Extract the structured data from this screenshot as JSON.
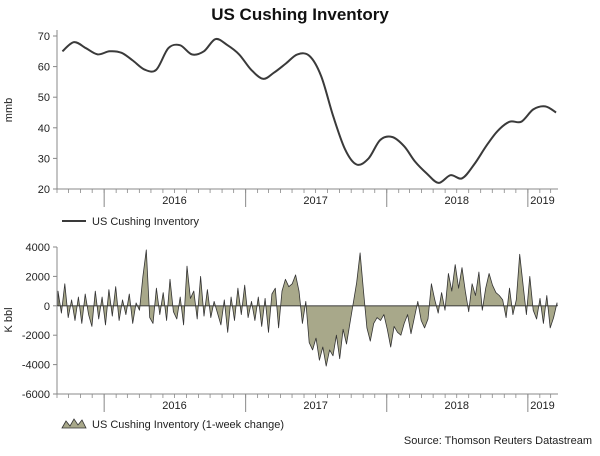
{
  "page": {
    "title": "US Cushing Inventory",
    "source": "Source: Thomson Reuters Datastream"
  },
  "chart_data": [
    {
      "type": "line",
      "ylabel": "mmb",
      "ylim": [
        20,
        70
      ],
      "yticks": [
        20,
        30,
        40,
        50,
        60,
        70
      ],
      "year_labels": [
        "2016",
        "2017",
        "2018",
        "2019"
      ],
      "legend": "US Cushing Inventory",
      "colors": {
        "line": "#3a3a3a"
      },
      "grid": false,
      "x_dates": [
        "2015-09",
        "2015-10",
        "2015-11",
        "2015-12",
        "2016-01",
        "2016-02",
        "2016-03",
        "2016-04",
        "2016-05",
        "2016-06",
        "2016-07",
        "2016-08",
        "2016-09",
        "2016-10",
        "2016-11",
        "2016-12",
        "2017-01",
        "2017-02",
        "2017-03",
        "2017-04",
        "2017-05",
        "2017-06",
        "2017-07",
        "2017-08",
        "2017-09",
        "2017-10",
        "2017-11",
        "2017-12",
        "2018-01",
        "2018-02",
        "2018-03",
        "2018-04",
        "2018-05",
        "2018-06",
        "2018-07",
        "2018-08",
        "2018-09",
        "2018-10",
        "2018-11",
        "2018-12",
        "2019-01",
        "2019-02",
        "2019-03"
      ],
      "values": [
        65,
        68,
        66,
        64,
        65,
        64.5,
        62,
        59,
        59,
        66,
        67,
        64,
        65,
        69,
        67,
        64,
        59,
        56,
        58,
        61,
        64,
        63.5,
        57,
        44,
        33,
        28,
        30,
        36,
        37,
        34,
        29,
        25,
        22,
        24.5,
        23.5,
        28,
        34,
        39,
        42,
        42,
        46,
        47,
        45
      ]
    },
    {
      "type": "area",
      "ylabel": "K bbl",
      "ylim": [
        -6000,
        4000
      ],
      "yticks": [
        -6000,
        -4000,
        -2000,
        0,
        2000,
        4000
      ],
      "year_labels": [
        "2016",
        "2017",
        "2018",
        "2019"
      ],
      "legend": "US Cushing Inventory (1-week change)",
      "colors": {
        "fill": "#a8a88a",
        "stroke": "#333333"
      },
      "grid": false,
      "weekly_values": [
        1000,
        -500,
        1500,
        -800,
        400,
        -1000,
        600,
        -1200,
        800,
        -600,
        -1400,
        1000,
        -900,
        600,
        -1300,
        1100,
        -700,
        1300,
        -1000,
        400,
        -600,
        800,
        -1200,
        200,
        -300,
        2000,
        3800,
        -800,
        -1200,
        1200,
        -600,
        900,
        -1000,
        1800,
        -400,
        -900,
        600,
        -1300,
        2700,
        500,
        1000,
        -900,
        2000,
        -700,
        1100,
        -800,
        300,
        -500,
        -1300,
        400,
        -1800,
        600,
        -1000,
        1200,
        -600,
        1400,
        -800,
        300,
        -1000,
        600,
        -1400,
        500,
        -1800,
        800,
        1200,
        -1500,
        1000,
        1800,
        1300,
        1500,
        2100,
        1000,
        -1200,
        300,
        -2500,
        -3000,
        -2200,
        -3700,
        -2800,
        -4100,
        -3000,
        -3400,
        -2000,
        -3600,
        -1600,
        -2600,
        -1200,
        200,
        1600,
        3600,
        1000,
        -1500,
        -2400,
        -1200,
        -800,
        -1000,
        -600,
        -1600,
        -2800,
        -1400,
        -1800,
        -2000,
        -1200,
        -600,
        -1900,
        -800,
        300,
        -1000,
        -1500,
        -900,
        1500,
        400,
        -500,
        900,
        -300,
        2200,
        1000,
        2800,
        1200,
        2600,
        1000,
        -400,
        1500,
        700,
        2300,
        -300,
        1200,
        2200,
        1400,
        900,
        700,
        400,
        -800,
        1200,
        -600,
        400,
        3500,
        1400,
        -600,
        2000,
        -300,
        -900,
        500,
        -1200,
        700,
        -1500,
        -800,
        200
      ]
    }
  ]
}
